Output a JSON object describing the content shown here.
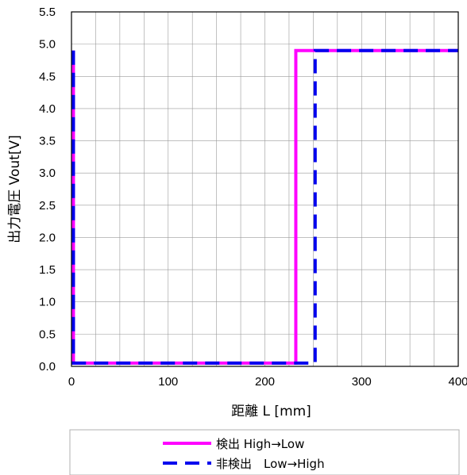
{
  "chart_data": {
    "type": "line",
    "title": "",
    "xlabel": "距離 L [mm]",
    "ylabel": "出力電圧 Vout[V]",
    "xlim": [
      0,
      400
    ],
    "ylim": [
      0,
      5.5
    ],
    "x_ticks": [
      0,
      100,
      200,
      300,
      400
    ],
    "y_ticks": [
      0.0,
      0.5,
      1.0,
      1.5,
      2.0,
      2.5,
      3.0,
      3.5,
      4.0,
      4.5,
      5.0,
      5.5
    ],
    "x_tick_labels": [
      "0",
      "100",
      "200",
      "300",
      "400"
    ],
    "y_tick_labels": [
      "0.0",
      "0.5",
      "1.0",
      "1.5",
      "2.0",
      "2.5",
      "3.0",
      "3.5",
      "4.0",
      "4.5",
      "5.0",
      "5.5"
    ],
    "grid": true,
    "legend_position": "bottom",
    "series": [
      {
        "name": "検出 High→Low",
        "color": "#ff00ff",
        "style": "solid",
        "x": [
          2,
          2,
          232,
          232,
          400
        ],
        "y": [
          4.9,
          0.05,
          0.05,
          4.9,
          4.9
        ]
      },
      {
        "name": "非検出　Low→High",
        "color": "#0000ee",
        "style": "dashed",
        "x": [
          2,
          2,
          252,
          252,
          400
        ],
        "y": [
          4.9,
          0.05,
          0.05,
          4.9,
          4.9
        ]
      }
    ]
  }
}
